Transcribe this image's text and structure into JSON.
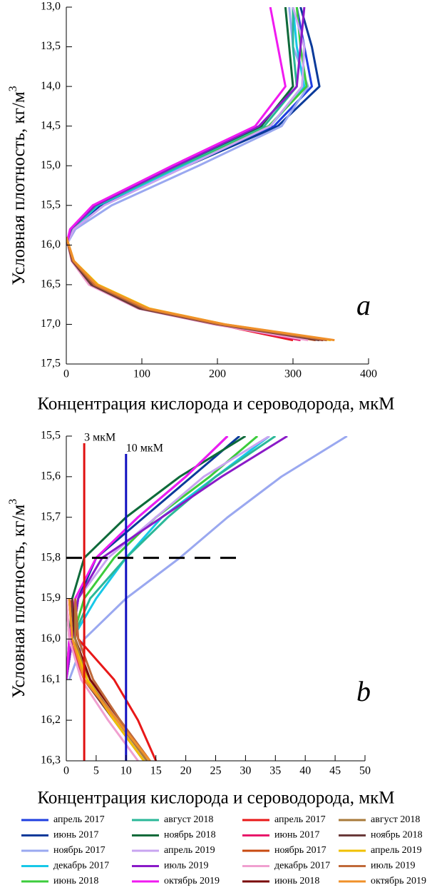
{
  "chart_data": {
    "type": "line",
    "y_inverted": true,
    "panels": [
      {
        "label": "a",
        "xlabel": "Концентрация кислорода и сероводорода, мкМ",
        "ylabel": "Условная плотность, кг/м",
        "ylabel_sup": "3",
        "xlim": [
          0,
          400
        ],
        "xticks": [
          0,
          100,
          200,
          300,
          400
        ],
        "ylim": [
          13,
          17.5
        ],
        "yticks": [
          {
            "value": 13,
            "label": "13,0"
          },
          {
            "value": 13.5,
            "label": "13,5"
          },
          {
            "value": 14,
            "label": "14,0"
          },
          {
            "value": 14.5,
            "label": "14,5"
          },
          {
            "value": 15,
            "label": "15,0"
          },
          {
            "value": 15.5,
            "label": "15,5"
          },
          {
            "value": 16,
            "label": "16,0"
          },
          {
            "value": 16.5,
            "label": "16,5"
          },
          {
            "value": 17,
            "label": "17,0"
          },
          {
            "value": 17.5,
            "label": "17,5"
          }
        ]
      },
      {
        "label": "b",
        "xlabel": "Концентрация кислорода и сероводорода, мкМ",
        "ylabel": "Условная плотность, кг/м",
        "ylabel_sup": "3",
        "xlim": [
          0,
          50
        ],
        "xticks": [
          0,
          5,
          10,
          15,
          20,
          25,
          30,
          35,
          40,
          45,
          50
        ],
        "ylim": [
          15.5,
          16.3
        ],
        "yticks": [
          {
            "value": 15.5,
            "label": "15,5"
          },
          {
            "value": 15.6,
            "label": "15,6"
          },
          {
            "value": 15.7,
            "label": "15,7"
          },
          {
            "value": 15.8,
            "label": "15,8"
          },
          {
            "value": 15.9,
            "label": "15,9"
          },
          {
            "value": 16,
            "label": "16,0"
          },
          {
            "value": 16.1,
            "label": "16,1"
          },
          {
            "value": 16.2,
            "label": "16,2"
          },
          {
            "value": 16.3,
            "label": "16,3"
          }
        ],
        "vlines": [
          {
            "text": "3 мкМ",
            "x": 3,
            "color": "#e01010"
          },
          {
            "text": "10 мкМ",
            "x": 10,
            "color": "#1010c0"
          }
        ],
        "hline": {
          "y": 15.8,
          "x": [
            0,
            30
          ]
        }
      }
    ],
    "series": [
      {
        "name": "апрель 2017",
        "color": "#1f3fe0",
        "a": {
          "x": [
            305,
            315,
            325,
            275,
            160,
            45,
            8,
            0
          ],
          "y": [
            13,
            13.5,
            14,
            14.5,
            15,
            15.5,
            15.8,
            16
          ]
        },
        "b": {
          "x": [
            27,
            20,
            12,
            5,
            2,
            1,
            0
          ],
          "y": [
            15.5,
            15.6,
            15.7,
            15.8,
            15.9,
            16,
            16.1
          ]
        }
      },
      {
        "name": "июнь 2017",
        "color": "#0a3a9a",
        "a": {
          "x": [
            310,
            325,
            335,
            280,
            160,
            45,
            8,
            0
          ],
          "y": [
            13,
            13.5,
            14,
            14.5,
            15,
            15.5,
            15.8,
            16
          ]
        },
        "b": {
          "x": [
            29,
            21,
            13,
            5,
            2,
            1,
            0
          ],
          "y": [
            15.5,
            15.6,
            15.7,
            15.8,
            15.9,
            16,
            16.1
          ]
        }
      },
      {
        "name": "ноябрь 2017",
        "color": "#9aa8f0",
        "a": {
          "x": [
            295,
            300,
            320,
            285,
            175,
            60,
            12,
            0
          ],
          "y": [
            13,
            13.5,
            14,
            14.5,
            15,
            15.5,
            15.8,
            16
          ]
        },
        "b": {
          "x": [
            47,
            36,
            27,
            19,
            10,
            3,
            0.5
          ],
          "y": [
            15.5,
            15.6,
            15.7,
            15.8,
            15.9,
            16,
            16.1
          ]
        }
      },
      {
        "name": "декабрь 2017",
        "color": "#17c8e8",
        "a": {
          "x": [
            300,
            305,
            315,
            270,
            155,
            42,
            8,
            0
          ],
          "y": [
            13,
            13.5,
            14,
            14.5,
            15,
            15.5,
            15.8,
            16
          ]
        },
        "b": {
          "x": [
            34,
            25,
            16,
            10,
            5,
            1,
            0
          ],
          "y": [
            15.5,
            15.6,
            15.7,
            15.8,
            15.9,
            16,
            16.1
          ]
        }
      },
      {
        "name": "июнь 2018",
        "color": "#3ccc3c",
        "a": {
          "x": [
            305,
            310,
            318,
            268,
            150,
            40,
            7,
            0
          ],
          "y": [
            13,
            13.5,
            14,
            14.5,
            15,
            15.5,
            15.8,
            16
          ]
        },
        "b": {
          "x": [
            32,
            24,
            15,
            8,
            3,
            1,
            0
          ],
          "y": [
            15.5,
            15.6,
            15.7,
            15.8,
            15.9,
            16,
            16.1
          ]
        }
      },
      {
        "name": "август 2018",
        "color": "#2ab898",
        "a": {
          "x": [
            300,
            300,
            305,
            262,
            150,
            40,
            7,
            0
          ],
          "y": [
            13,
            13.5,
            14,
            14.5,
            15,
            15.5,
            15.8,
            16
          ]
        },
        "b": {
          "x": [
            35,
            25,
            17,
            10,
            4,
            1,
            0
          ],
          "y": [
            15.5,
            15.6,
            15.7,
            15.8,
            15.9,
            16,
            16.1
          ]
        }
      },
      {
        "name": "ноябрь 2018",
        "color": "#0e6a3a",
        "a": {
          "x": [
            290,
            295,
            300,
            258,
            145,
            38,
            6,
            0
          ],
          "y": [
            13,
            13.5,
            14,
            14.5,
            15,
            15.5,
            15.8,
            16
          ]
        },
        "b": {
          "x": [
            30,
            19,
            10,
            3,
            1,
            0.5,
            0
          ],
          "y": [
            15.5,
            15.6,
            15.7,
            15.8,
            15.9,
            16,
            16.1
          ]
        }
      },
      {
        "name": "апрель 2019",
        "color": "#c8a4f0",
        "a": {
          "x": [
            300,
            315,
            312,
            270,
            160,
            50,
            10,
            0
          ],
          "y": [
            13,
            13.5,
            14,
            14.5,
            15,
            15.5,
            15.8,
            16
          ]
        },
        "b": {
          "x": [
            34,
            23,
            15,
            7,
            2,
            1,
            0
          ],
          "y": [
            15.5,
            15.6,
            15.7,
            15.8,
            15.9,
            16,
            16.1
          ]
        }
      },
      {
        "name": "июль 2019",
        "color": "#8a1ac8",
        "a": {
          "x": [
            315,
            310,
            305,
            255,
            145,
            38,
            6,
            0
          ],
          "y": [
            13,
            13.5,
            14,
            14.5,
            15,
            15.5,
            15.8,
            16
          ]
        },
        "b": {
          "x": [
            37,
            26,
            16,
            6,
            2,
            1,
            0
          ],
          "y": [
            15.5,
            15.6,
            15.7,
            15.8,
            15.9,
            16,
            16.1
          ]
        }
      },
      {
        "name": "октябрь 2019",
        "color": "#f01af0",
        "a": {
          "x": [
            270,
            280,
            290,
            250,
            140,
            35,
            5,
            0
          ],
          "y": [
            13,
            13.5,
            14,
            14.5,
            15,
            15.5,
            15.8,
            16
          ]
        },
        "b": {
          "x": [
            27,
            20,
            12,
            5,
            1.5,
            0.5,
            0
          ],
          "y": [
            15.5,
            15.6,
            15.7,
            15.8,
            15.9,
            16,
            16.1
          ]
        }
      },
      {
        "name": "апрель 2017",
        "color": "#e81818",
        "a": {
          "x": [
            0,
            8,
            35,
            100,
            200,
            300
          ],
          "y": [
            15.9,
            16.2,
            16.5,
            16.8,
            17,
            17.2
          ]
        },
        "b": {
          "x": [
            0.5,
            2,
            8,
            12,
            15
          ],
          "y": [
            15.9,
            16,
            16.1,
            16.2,
            16.3
          ]
        }
      },
      {
        "name": "июнь 2017",
        "color": "#e8186a",
        "a": {
          "x": [
            0,
            8,
            32,
            98,
            198,
            310
          ],
          "y": [
            15.9,
            16.2,
            16.5,
            16.8,
            17,
            17.2
          ]
        },
        "b": {
          "x": [
            0,
            0.5,
            3,
            8,
            13
          ],
          "y": [
            15.9,
            16,
            16.1,
            16.2,
            16.3
          ]
        }
      },
      {
        "name": "ноябрь 2017",
        "color": "#c84a10",
        "a": {
          "x": [
            0,
            9,
            36,
            102,
            202,
            330
          ],
          "y": [
            15.9,
            16.2,
            16.5,
            16.8,
            17,
            17.2
          ]
        },
        "b": {
          "x": [
            0.5,
            1,
            4,
            9,
            14
          ],
          "y": [
            15.9,
            16,
            16.1,
            16.2,
            16.3
          ]
        }
      },
      {
        "name": "декабрь 2017",
        "color": "#f0a0d0",
        "a": {
          "x": [
            0,
            7,
            30,
            95,
            195,
            320
          ],
          "y": [
            15.9,
            16.2,
            16.5,
            16.8,
            17,
            17.2
          ]
        },
        "b": {
          "x": [
            0,
            0.5,
            2.5,
            7,
            12
          ],
          "y": [
            15.9,
            16,
            16.1,
            16.2,
            16.3
          ]
        }
      },
      {
        "name": "июнь 2018",
        "color": "#7a0a0a",
        "a": {
          "x": [
            0,
            8,
            34,
            100,
            205,
            340
          ],
          "y": [
            15.9,
            16.2,
            16.5,
            16.8,
            17,
            17.2
          ]
        },
        "b": {
          "x": [
            1,
            1.5,
            4,
            9,
            14
          ],
          "y": [
            15.9,
            16,
            16.1,
            16.2,
            16.3
          ]
        }
      },
      {
        "name": "август 2018",
        "color": "#a87a3a",
        "a": {
          "x": [
            0,
            9,
            38,
            105,
            205,
            345
          ],
          "y": [
            15.9,
            16.2,
            16.5,
            16.8,
            17,
            17.2
          ]
        },
        "b": {
          "x": [
            1.5,
            1.5,
            3.5,
            8.5,
            13.5
          ],
          "y": [
            15.9,
            16,
            16.1,
            16.2,
            16.3
          ]
        }
      },
      {
        "name": "ноябрь 2018",
        "color": "#6a3a3a",
        "a": {
          "x": [
            0,
            8,
            33,
            97,
            200,
            335
          ],
          "y": [
            15.9,
            16.2,
            16.5,
            16.8,
            17,
            17.2
          ]
        },
        "b": {
          "x": [
            1,
            1,
            3,
            8,
            13
          ],
          "y": [
            15.9,
            16,
            16.1,
            16.2,
            16.3
          ]
        }
      },
      {
        "name": "апрель 2019",
        "color": "#f0c000",
        "a": {
          "x": [
            0,
            10,
            42,
            110,
            210,
            350
          ],
          "y": [
            15.9,
            16.2,
            16.5,
            16.8,
            17,
            17.2
          ]
        },
        "b": {
          "x": [
            0.5,
            1,
            3.5,
            8,
            13
          ],
          "y": [
            15.9,
            16,
            16.1,
            16.2,
            16.3
          ]
        }
      },
      {
        "name": "июль 2019",
        "color": "#c06a3a",
        "a": {
          "x": [
            0,
            9,
            37,
            103,
            203,
            345
          ],
          "y": [
            15.9,
            16.2,
            16.5,
            16.8,
            17,
            17.2
          ]
        },
        "b": {
          "x": [
            1.5,
            2,
            4.5,
            9,
            14
          ],
          "y": [
            15.9,
            16,
            16.1,
            16.2,
            16.3
          ]
        }
      },
      {
        "name": "октябрь 2019",
        "color": "#f0902a",
        "a": {
          "x": [
            0,
            10,
            40,
            108,
            210,
            355
          ],
          "y": [
            15.9,
            16.2,
            16.5,
            16.8,
            17,
            17.2
          ]
        },
        "b": {
          "x": [
            0.5,
            1,
            3,
            8.5,
            14
          ],
          "y": [
            15.9,
            16,
            16.1,
            16.2,
            16.3
          ]
        }
      }
    ]
  }
}
